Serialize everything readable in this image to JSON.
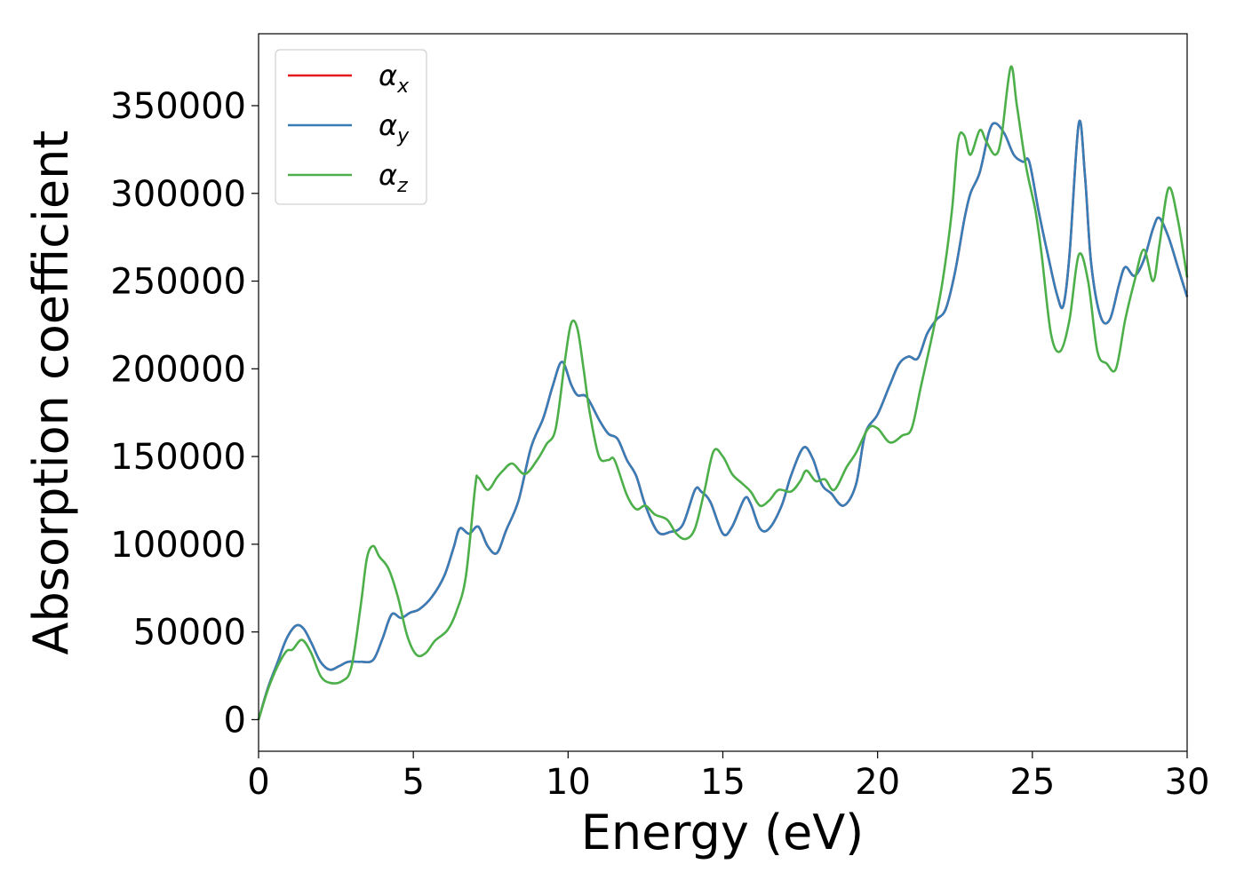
{
  "chart_data": {
    "type": "line",
    "title": "",
    "xlabel": "Energy (eV)",
    "ylabel": "Absorption coefficient",
    "xlim": [
      0,
      30
    ],
    "ylim": [
      -18000,
      391000
    ],
    "x_ticks": [
      "0",
      "5",
      "10",
      "15",
      "20",
      "25",
      "30"
    ],
    "y_ticks": [
      "0",
      "50000",
      "100000",
      "150000",
      "200000",
      "250000",
      "300000",
      "350000"
    ],
    "grid": false,
    "legend_position": "top-left",
    "series": [
      {
        "name": "α",
        "subscript": "x",
        "color": "#e41a1c",
        "points": [
          [
            0,
            0
          ],
          [
            0.3,
            18000
          ],
          [
            0.6,
            32000
          ],
          [
            0.9,
            46000
          ],
          [
            1.2,
            53500
          ],
          [
            1.45,
            52000
          ],
          [
            1.7,
            44000
          ],
          [
            2.0,
            33000
          ],
          [
            2.3,
            28500
          ],
          [
            2.6,
            30500
          ],
          [
            2.9,
            33000
          ],
          [
            3.3,
            33000
          ],
          [
            3.7,
            34000
          ],
          [
            4.0,
            46000
          ],
          [
            4.3,
            60000
          ],
          [
            4.6,
            58000
          ],
          [
            4.9,
            61000
          ],
          [
            5.2,
            63000
          ],
          [
            5.6,
            70000
          ],
          [
            6.0,
            82000
          ],
          [
            6.3,
            98000
          ],
          [
            6.5,
            109000
          ],
          [
            6.8,
            106000
          ],
          [
            7.1,
            110000
          ],
          [
            7.4,
            99000
          ],
          [
            7.7,
            95000
          ],
          [
            8.0,
            108000
          ],
          [
            8.4,
            125000
          ],
          [
            8.8,
            155000
          ],
          [
            9.2,
            172000
          ],
          [
            9.5,
            190000
          ],
          [
            9.8,
            204000
          ],
          [
            10.1,
            191000
          ],
          [
            10.3,
            185000
          ],
          [
            10.6,
            184000
          ],
          [
            11.0,
            171000
          ],
          [
            11.3,
            163000
          ],
          [
            11.6,
            160000
          ],
          [
            11.9,
            148000
          ],
          [
            12.2,
            139000
          ],
          [
            12.5,
            122000
          ],
          [
            12.9,
            107000
          ],
          [
            13.3,
            107000
          ],
          [
            13.7,
            111000
          ],
          [
            14.1,
            131000
          ],
          [
            14.3,
            130000
          ],
          [
            14.6,
            124000
          ],
          [
            15.0,
            106000
          ],
          [
            15.3,
            110000
          ],
          [
            15.7,
            126000
          ],
          [
            15.9,
            123000
          ],
          [
            16.2,
            109000
          ],
          [
            16.5,
            109000
          ],
          [
            16.9,
            122000
          ],
          [
            17.2,
            139000
          ],
          [
            17.6,
            155000
          ],
          [
            17.9,
            149000
          ],
          [
            18.2,
            134000
          ],
          [
            18.5,
            129000
          ],
          [
            18.9,
            122000
          ],
          [
            19.3,
            134000
          ],
          [
            19.6,
            163000
          ],
          [
            20.0,
            174000
          ],
          [
            20.4,
            191000
          ],
          [
            20.7,
            203000
          ],
          [
            21.0,
            207000
          ],
          [
            21.3,
            206000
          ],
          [
            21.6,
            220000
          ],
          [
            21.9,
            228000
          ],
          [
            22.2,
            234000
          ],
          [
            22.5,
            255000
          ],
          [
            22.8,
            285000
          ],
          [
            23.0,
            300000
          ],
          [
            23.3,
            312000
          ],
          [
            23.6,
            335000
          ],
          [
            23.8,
            340000
          ],
          [
            24.1,
            334000
          ],
          [
            24.4,
            322000
          ],
          [
            24.7,
            318000
          ],
          [
            24.9,
            318000
          ],
          [
            25.2,
            290000
          ],
          [
            25.5,
            265000
          ],
          [
            25.8,
            242000
          ],
          [
            26.0,
            236000
          ],
          [
            26.2,
            265000
          ],
          [
            26.5,
            340000
          ],
          [
            26.7,
            310000
          ],
          [
            26.9,
            260000
          ],
          [
            27.2,
            230000
          ],
          [
            27.5,
            228000
          ],
          [
            27.8,
            248000
          ],
          [
            28.0,
            258000
          ],
          [
            28.3,
            253000
          ],
          [
            28.6,
            262000
          ],
          [
            28.9,
            280000
          ],
          [
            29.1,
            286000
          ],
          [
            29.4,
            275000
          ],
          [
            29.7,
            258000
          ],
          [
            30.0,
            241000
          ]
        ]
      },
      {
        "name": "α",
        "subscript": "y",
        "color": "#377eb8",
        "points": [
          [
            0,
            0
          ],
          [
            0.3,
            18000
          ],
          [
            0.6,
            32000
          ],
          [
            0.9,
            46000
          ],
          [
            1.2,
            53500
          ],
          [
            1.45,
            52000
          ],
          [
            1.7,
            44000
          ],
          [
            2.0,
            33000
          ],
          [
            2.3,
            28500
          ],
          [
            2.6,
            30500
          ],
          [
            2.9,
            33000
          ],
          [
            3.3,
            33000
          ],
          [
            3.7,
            34000
          ],
          [
            4.0,
            46000
          ],
          [
            4.3,
            60000
          ],
          [
            4.6,
            58000
          ],
          [
            4.9,
            61000
          ],
          [
            5.2,
            63000
          ],
          [
            5.6,
            70000
          ],
          [
            6.0,
            82000
          ],
          [
            6.3,
            98000
          ],
          [
            6.5,
            109000
          ],
          [
            6.8,
            106000
          ],
          [
            7.1,
            110000
          ],
          [
            7.4,
            99000
          ],
          [
            7.7,
            95000
          ],
          [
            8.0,
            108000
          ],
          [
            8.4,
            125000
          ],
          [
            8.8,
            155000
          ],
          [
            9.2,
            172000
          ],
          [
            9.5,
            190000
          ],
          [
            9.8,
            204000
          ],
          [
            10.1,
            191000
          ],
          [
            10.3,
            185000
          ],
          [
            10.6,
            184000
          ],
          [
            11.0,
            171000
          ],
          [
            11.3,
            163000
          ],
          [
            11.6,
            160000
          ],
          [
            11.9,
            148000
          ],
          [
            12.2,
            139000
          ],
          [
            12.5,
            122000
          ],
          [
            12.9,
            107000
          ],
          [
            13.3,
            107000
          ],
          [
            13.7,
            111000
          ],
          [
            14.1,
            131000
          ],
          [
            14.3,
            130000
          ],
          [
            14.6,
            124000
          ],
          [
            15.0,
            106000
          ],
          [
            15.3,
            110000
          ],
          [
            15.7,
            126000
          ],
          [
            15.9,
            123000
          ],
          [
            16.2,
            109000
          ],
          [
            16.5,
            109000
          ],
          [
            16.9,
            122000
          ],
          [
            17.2,
            139000
          ],
          [
            17.6,
            155000
          ],
          [
            17.9,
            149000
          ],
          [
            18.2,
            134000
          ],
          [
            18.5,
            129000
          ],
          [
            18.9,
            122000
          ],
          [
            19.3,
            134000
          ],
          [
            19.6,
            163000
          ],
          [
            20.0,
            174000
          ],
          [
            20.4,
            191000
          ],
          [
            20.7,
            203000
          ],
          [
            21.0,
            207000
          ],
          [
            21.3,
            206000
          ],
          [
            21.6,
            220000
          ],
          [
            21.9,
            228000
          ],
          [
            22.2,
            234000
          ],
          [
            22.5,
            255000
          ],
          [
            22.8,
            285000
          ],
          [
            23.0,
            300000
          ],
          [
            23.3,
            312000
          ],
          [
            23.6,
            335000
          ],
          [
            23.8,
            340000
          ],
          [
            24.1,
            334000
          ],
          [
            24.4,
            322000
          ],
          [
            24.7,
            318000
          ],
          [
            24.9,
            318000
          ],
          [
            25.2,
            290000
          ],
          [
            25.5,
            265000
          ],
          [
            25.8,
            242000
          ],
          [
            26.0,
            236000
          ],
          [
            26.2,
            265000
          ],
          [
            26.5,
            340000
          ],
          [
            26.7,
            310000
          ],
          [
            26.9,
            260000
          ],
          [
            27.2,
            230000
          ],
          [
            27.5,
            228000
          ],
          [
            27.8,
            248000
          ],
          [
            28.0,
            258000
          ],
          [
            28.3,
            253000
          ],
          [
            28.6,
            262000
          ],
          [
            28.9,
            280000
          ],
          [
            29.1,
            286000
          ],
          [
            29.4,
            275000
          ],
          [
            29.7,
            258000
          ],
          [
            30.0,
            241000
          ]
        ]
      },
      {
        "name": "α",
        "subscript": "z",
        "color": "#4daf4a",
        "points": [
          [
            0,
            0
          ],
          [
            0.3,
            17000
          ],
          [
            0.6,
            30000
          ],
          [
            0.9,
            39000
          ],
          [
            1.1,
            40000
          ],
          [
            1.4,
            45500
          ],
          [
            1.7,
            38000
          ],
          [
            2.0,
            25000
          ],
          [
            2.3,
            21000
          ],
          [
            2.7,
            22000
          ],
          [
            3.0,
            30000
          ],
          [
            3.3,
            65000
          ],
          [
            3.5,
            92000
          ],
          [
            3.7,
            99000
          ],
          [
            3.9,
            93000
          ],
          [
            4.2,
            86000
          ],
          [
            4.5,
            70000
          ],
          [
            4.8,
            48000
          ],
          [
            5.1,
            37000
          ],
          [
            5.4,
            38000
          ],
          [
            5.7,
            45000
          ],
          [
            6.1,
            51000
          ],
          [
            6.4,
            62000
          ],
          [
            6.7,
            82000
          ],
          [
            7.0,
            133000
          ],
          [
            7.1,
            138000
          ],
          [
            7.4,
            131000
          ],
          [
            7.7,
            138000
          ],
          [
            7.9,
            142000
          ],
          [
            8.2,
            146000
          ],
          [
            8.6,
            140000
          ],
          [
            9.0,
            148000
          ],
          [
            9.3,
            157000
          ],
          [
            9.6,
            166000
          ],
          [
            9.9,
            205000
          ],
          [
            10.1,
            226000
          ],
          [
            10.3,
            223000
          ],
          [
            10.5,
            200000
          ],
          [
            10.7,
            175000
          ],
          [
            11.0,
            150000
          ],
          [
            11.3,
            148000
          ],
          [
            11.5,
            148000
          ],
          [
            11.9,
            128000
          ],
          [
            12.2,
            120000
          ],
          [
            12.5,
            122000
          ],
          [
            12.8,
            117000
          ],
          [
            13.2,
            114000
          ],
          [
            13.5,
            106000
          ],
          [
            13.8,
            103000
          ],
          [
            14.1,
            109000
          ],
          [
            14.4,
            130000
          ],
          [
            14.7,
            153000
          ],
          [
            15.0,
            150000
          ],
          [
            15.3,
            140000
          ],
          [
            15.6,
            135000
          ],
          [
            15.9,
            130000
          ],
          [
            16.2,
            122000
          ],
          [
            16.5,
            125000
          ],
          [
            16.8,
            131000
          ],
          [
            17.2,
            130000
          ],
          [
            17.5,
            136000
          ],
          [
            17.7,
            142000
          ],
          [
            18.0,
            136000
          ],
          [
            18.3,
            137000
          ],
          [
            18.6,
            131000
          ],
          [
            19.0,
            144000
          ],
          [
            19.3,
            152000
          ],
          [
            19.7,
            166000
          ],
          [
            20.0,
            166000
          ],
          [
            20.4,
            158000
          ],
          [
            20.8,
            162000
          ],
          [
            21.1,
            166000
          ],
          [
            21.4,
            190000
          ],
          [
            21.8,
            222000
          ],
          [
            22.1,
            250000
          ],
          [
            22.4,
            290000
          ],
          [
            22.6,
            330000
          ],
          [
            22.8,
            333000
          ],
          [
            23.0,
            322000
          ],
          [
            23.3,
            336000
          ],
          [
            23.5,
            330000
          ],
          [
            23.8,
            322000
          ],
          [
            24.0,
            332000
          ],
          [
            24.3,
            372000
          ],
          [
            24.5,
            350000
          ],
          [
            24.8,
            315000
          ],
          [
            25.1,
            290000
          ],
          [
            25.3,
            265000
          ],
          [
            25.6,
            220000
          ],
          [
            25.9,
            210000
          ],
          [
            26.2,
            228000
          ],
          [
            26.5,
            265000
          ],
          [
            26.8,
            250000
          ],
          [
            27.1,
            210000
          ],
          [
            27.4,
            203000
          ],
          [
            27.7,
            200000
          ],
          [
            28.0,
            228000
          ],
          [
            28.3,
            250000
          ],
          [
            28.6,
            268000
          ],
          [
            28.9,
            250000
          ],
          [
            29.1,
            270000
          ],
          [
            29.4,
            303000
          ],
          [
            29.7,
            285000
          ],
          [
            30.0,
            252000
          ]
        ]
      }
    ]
  }
}
